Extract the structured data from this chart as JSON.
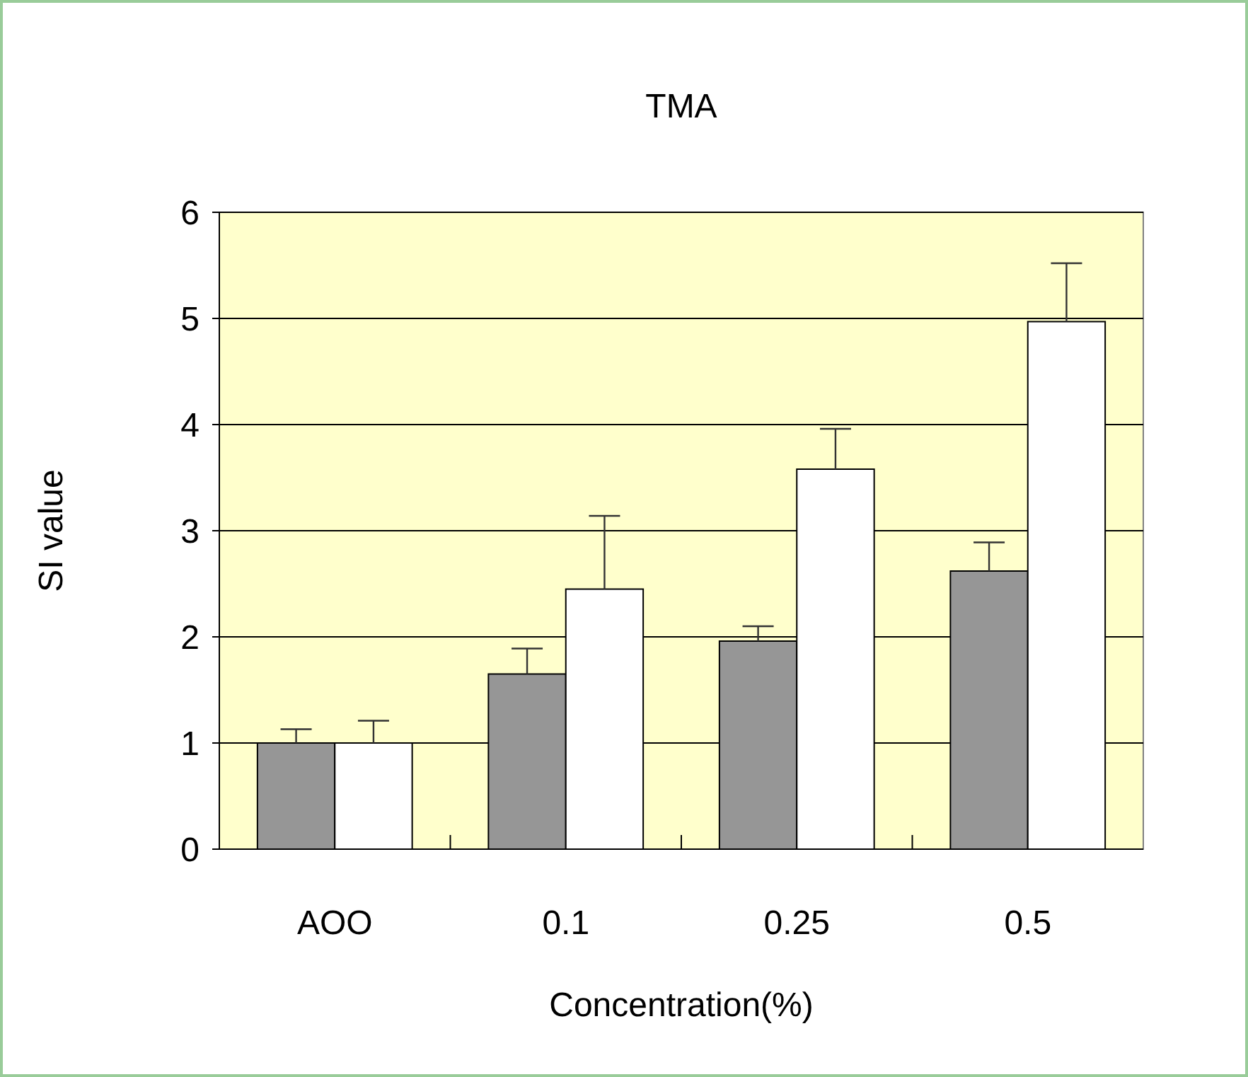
{
  "chart_data": {
    "type": "bar",
    "title": "TMA",
    "xlabel": "Concentration(%)",
    "ylabel": "SI value",
    "categories": [
      "AOO",
      "0.1",
      "0.25",
      "0.5"
    ],
    "series": [
      {
        "color": "#969696",
        "values": [
          1.0,
          1.65,
          1.96,
          2.62
        ],
        "errors": [
          0.13,
          0.24,
          0.14,
          0.27
        ]
      },
      {
        "color": "#ffffff",
        "values": [
          1.0,
          2.45,
          3.58,
          4.97
        ],
        "errors": [
          0.21,
          0.69,
          0.38,
          0.55
        ]
      }
    ],
    "ylim": [
      0,
      6
    ],
    "yticks": [
      0,
      1,
      2,
      3,
      4,
      5,
      6
    ],
    "grid": "y"
  }
}
